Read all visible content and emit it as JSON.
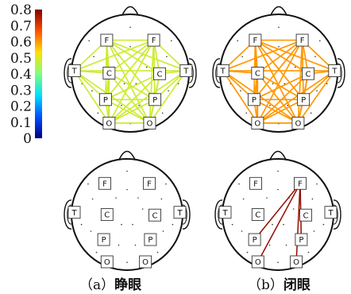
{
  "colorbar": {
    "ticks": [
      "0.8",
      "0.7",
      "0.6",
      "0.5",
      "0.4",
      "0.3",
      "0.2",
      "0.1",
      "0"
    ],
    "min": 0,
    "max": 0.8,
    "colormap": [
      "#00007f",
      "#0050ff",
      "#00e0ff",
      "#7fff7f",
      "#ffe000",
      "#ff5000",
      "#7f0000"
    ]
  },
  "node_labels": {
    "FL": "F",
    "FR": "F",
    "TL": "T",
    "TR": "T",
    "CL": "C",
    "CR": "C",
    "PL": "P",
    "PR": "P",
    "OL": "O",
    "OR": "O"
  },
  "panels": [
    {
      "id": "a-top",
      "edges": [
        [
          "FL",
          "FR",
          0.48
        ],
        [
          "FL",
          "TL",
          0.48
        ],
        [
          "FL",
          "TR",
          0.48
        ],
        [
          "FL",
          "CL",
          0.48
        ],
        [
          "FL",
          "CR",
          0.48
        ],
        [
          "FL",
          "PL",
          0.48
        ],
        [
          "FL",
          "PR",
          0.48
        ],
        [
          "FL",
          "OL",
          0.48
        ],
        [
          "FL",
          "OR",
          0.48
        ],
        [
          "FR",
          "TL",
          0.48
        ],
        [
          "FR",
          "TR",
          0.48
        ],
        [
          "FR",
          "CL",
          0.48
        ],
        [
          "FR",
          "CR",
          0.48
        ],
        [
          "FR",
          "PL",
          0.48
        ],
        [
          "FR",
          "PR",
          0.48
        ],
        [
          "FR",
          "OL",
          0.48
        ],
        [
          "FR",
          "OR",
          0.48
        ],
        [
          "TL",
          "TR",
          0.48
        ],
        [
          "TL",
          "CL",
          0.48
        ],
        [
          "TL",
          "PL",
          0.48
        ],
        [
          "TL",
          "OL",
          0.48
        ],
        [
          "TL",
          "OR",
          0.48
        ],
        [
          "TR",
          "CR",
          0.48
        ],
        [
          "TR",
          "PR",
          0.48
        ],
        [
          "TR",
          "OL",
          0.48
        ],
        [
          "TR",
          "OR",
          0.48
        ],
        [
          "CL",
          "PL",
          0.48
        ],
        [
          "CL",
          "PR",
          0.48
        ],
        [
          "CL",
          "OL",
          0.48
        ],
        [
          "CL",
          "OR",
          0.48
        ],
        [
          "CR",
          "PL",
          0.48
        ],
        [
          "CR",
          "PR",
          0.48
        ],
        [
          "CR",
          "OL",
          0.48
        ],
        [
          "CR",
          "OR",
          0.48
        ],
        [
          "PL",
          "PR",
          0.48
        ],
        [
          "PL",
          "OL",
          0.48
        ],
        [
          "PL",
          "OR",
          0.48
        ],
        [
          "PR",
          "OL",
          0.48
        ],
        [
          "PR",
          "OR",
          0.48
        ],
        [
          "OL",
          "OR",
          0.48
        ]
      ]
    },
    {
      "id": "b-top",
      "edges": [
        [
          "FL",
          "FR",
          0.6
        ],
        [
          "FL",
          "TL",
          0.6
        ],
        [
          "FL",
          "TR",
          0.6
        ],
        [
          "FL",
          "CL",
          0.6
        ],
        [
          "FL",
          "CR",
          0.6
        ],
        [
          "FL",
          "PL",
          0.6
        ],
        [
          "FL",
          "PR",
          0.6
        ],
        [
          "FL",
          "OL",
          0.6
        ],
        [
          "FL",
          "OR",
          0.6
        ],
        [
          "FR",
          "TL",
          0.6
        ],
        [
          "FR",
          "TR",
          0.6
        ],
        [
          "FR",
          "CL",
          0.6
        ],
        [
          "FR",
          "CR",
          0.6
        ],
        [
          "FR",
          "PL",
          0.6
        ],
        [
          "FR",
          "PR",
          0.6
        ],
        [
          "FR",
          "OL",
          0.6
        ],
        [
          "FR",
          "OR",
          0.6
        ],
        [
          "TL",
          "TR",
          0.6
        ],
        [
          "TL",
          "CL",
          0.6
        ],
        [
          "TL",
          "PL",
          0.6
        ],
        [
          "TL",
          "OL",
          0.6
        ],
        [
          "TL",
          "OR",
          0.6
        ],
        [
          "TR",
          "CR",
          0.6
        ],
        [
          "TR",
          "PR",
          0.6
        ],
        [
          "TR",
          "OL",
          0.6
        ],
        [
          "TR",
          "OR",
          0.6
        ],
        [
          "CL",
          "PL",
          0.6
        ],
        [
          "CL",
          "PR",
          0.6
        ],
        [
          "CL",
          "OL",
          0.6
        ],
        [
          "CL",
          "OR",
          0.6
        ],
        [
          "CR",
          "PL",
          0.6
        ],
        [
          "CR",
          "PR",
          0.6
        ],
        [
          "CR",
          "OL",
          0.6
        ],
        [
          "CR",
          "OR",
          0.6
        ],
        [
          "PL",
          "PR",
          0.6
        ],
        [
          "PL",
          "OL",
          0.6
        ],
        [
          "PL",
          "OR",
          0.6
        ],
        [
          "PR",
          "OL",
          0.6
        ],
        [
          "PR",
          "OR",
          0.6
        ],
        [
          "OL",
          "OR",
          0.6
        ]
      ]
    },
    {
      "id": "a-bottom",
      "edges": []
    },
    {
      "id": "b-bottom",
      "edges": [
        [
          "FR",
          "PL",
          0.78
        ],
        [
          "FR",
          "PR",
          0.78
        ],
        [
          "FR",
          "OL",
          0.78
        ],
        [
          "FR",
          "OR",
          0.78
        ]
      ]
    }
  ],
  "captions": {
    "a": {
      "tag": "（a）",
      "text": "睁眼"
    },
    "b": {
      "tag": "（b）",
      "text": "闭眼"
    }
  }
}
